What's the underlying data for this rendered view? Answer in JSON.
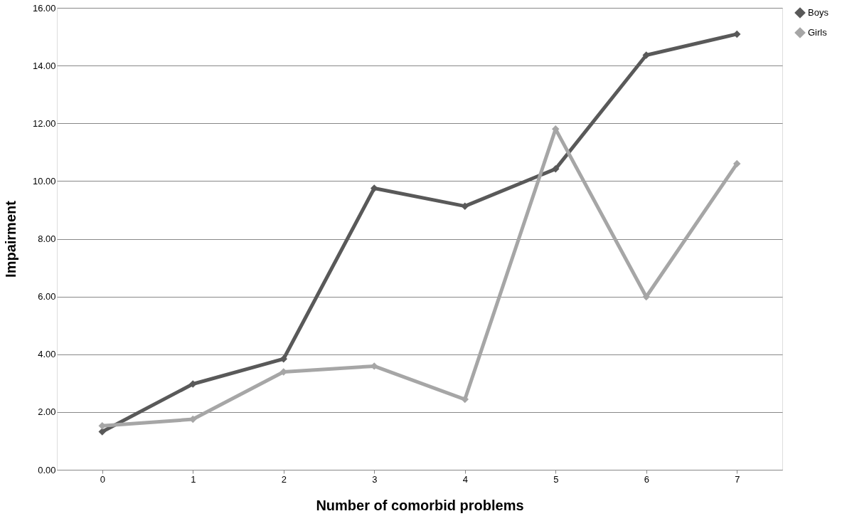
{
  "chart_data": {
    "type": "line",
    "xlabel": "Number of comorbid problems",
    "ylabel": "Impairment",
    "categories": [
      "0",
      "1",
      "2",
      "3",
      "4",
      "5",
      "6",
      "7"
    ],
    "series": [
      {
        "name": "Boys",
        "color": "#595959",
        "values": [
          1.32,
          2.97,
          3.84,
          9.75,
          9.13,
          10.42,
          14.36,
          15.09
        ]
      },
      {
        "name": "Girls",
        "color": "#a6a6a6",
        "values": [
          1.52,
          1.75,
          3.39,
          3.59,
          2.44,
          11.8,
          5.99,
          10.6
        ]
      }
    ],
    "ylim": [
      0,
      16
    ],
    "yticks": [
      {
        "value": 0,
        "label": "0.00"
      },
      {
        "value": 2,
        "label": "2.00"
      },
      {
        "value": 4,
        "label": "4.00"
      },
      {
        "value": 6,
        "label": "6.00"
      },
      {
        "value": 8,
        "label": "8.00"
      },
      {
        "value": 10,
        "label": "10.00"
      },
      {
        "value": 12,
        "label": "12.00"
      },
      {
        "value": 14,
        "label": "14.00"
      },
      {
        "value": 16,
        "label": "16.00"
      }
    ],
    "grid": "y",
    "legend": "right",
    "marker": "diamond",
    "line_style": "solid"
  }
}
